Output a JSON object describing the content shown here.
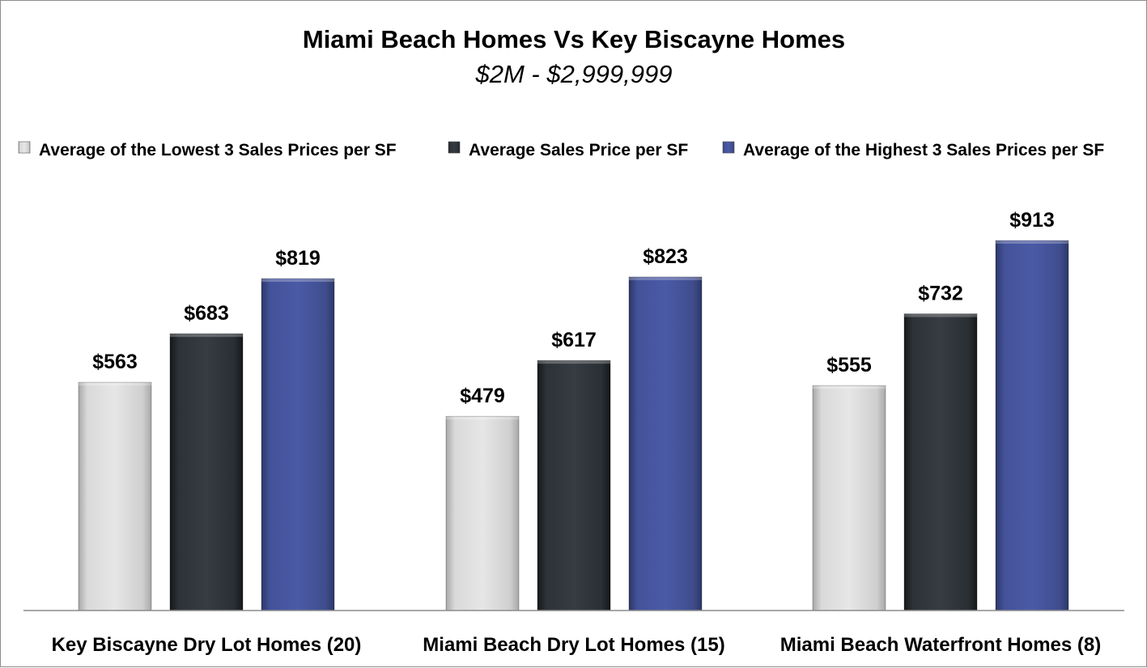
{
  "chart_data": {
    "type": "bar",
    "title": "Miami Beach Homes Vs Key Biscayne Homes",
    "subtitle": "$2M - $2,999,999",
    "categories": [
      "Key Biscayne Dry Lot Homes (20)",
      "Miami Beach Dry Lot Homes (15)",
      "Miami Beach Waterfront Homes (8)"
    ],
    "series": [
      {
        "name": "Average of the Lowest 3 Sales Prices per SF",
        "values": [
          563,
          479,
          555
        ],
        "labels": [
          "$563",
          "$479",
          "$555"
        ],
        "color": "#c9c9c9"
      },
      {
        "name": "Average Sales Price per SF",
        "values": [
          683,
          617,
          732
        ],
        "labels": [
          "$683",
          "$617",
          "$732"
        ],
        "color": "#262b30"
      },
      {
        "name": "Average of the Highest 3 Sales Prices per SF",
        "values": [
          819,
          823,
          913
        ],
        "labels": [
          "$819",
          "$823",
          "$913"
        ],
        "color": "#3c4a85"
      }
    ],
    "ylim": [
      0,
      913
    ],
    "legend_position": "top",
    "grid": false,
    "xlabel": "",
    "ylabel": ""
  }
}
